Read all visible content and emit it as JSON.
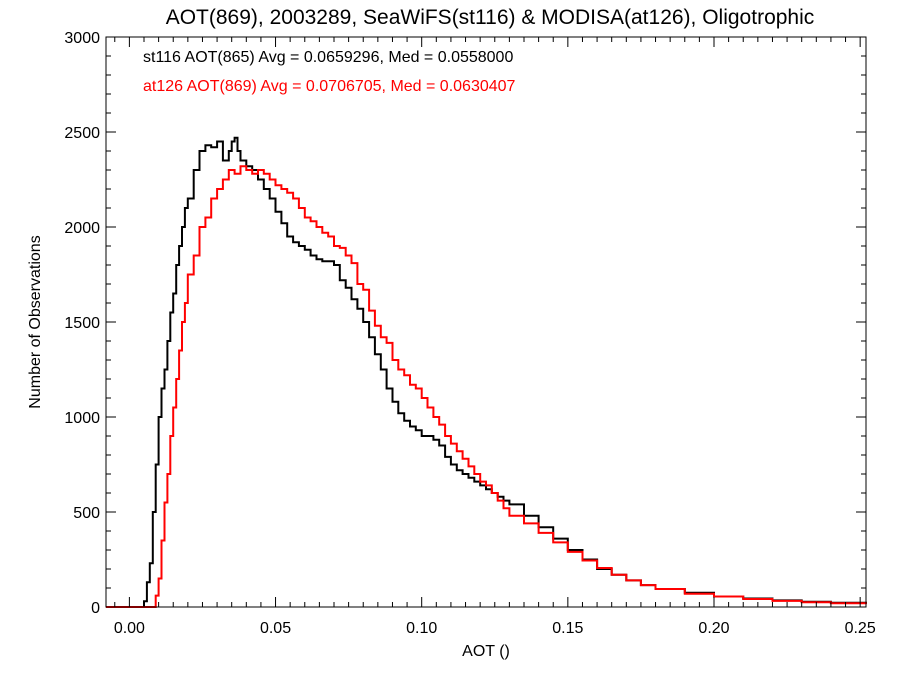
{
  "chart_data": {
    "type": "line",
    "title": "AOT(869), 2003289, SeaWiFS(st116) & MODISA(at126), Oligotrophic",
    "xlabel": "AOT ()",
    "ylabel": "Number of Observations",
    "xlim": [
      -0.008,
      0.252
    ],
    "ylim": [
      0,
      3000
    ],
    "xticks": [
      0.0,
      0.05,
      0.1,
      0.15,
      0.2,
      0.25
    ],
    "xtick_labels": [
      "0.00",
      "0.05",
      "0.10",
      "0.15",
      "0.20",
      "0.25"
    ],
    "yticks": [
      0,
      500,
      1000,
      1500,
      2000,
      2500,
      3000
    ],
    "ytick_labels": [
      "0",
      "500",
      "1000",
      "1500",
      "2000",
      "2500",
      "3000"
    ],
    "grid": false,
    "legend_placement": "top-left",
    "series": [
      {
        "name": "st116 AOT(865) Avg = 0.0659296, Med = 0.0558000",
        "color": "#000000",
        "style": "step",
        "x": [
          -0.008,
          0.002,
          0.004,
          0.005,
          0.006,
          0.007,
          0.008,
          0.009,
          0.01,
          0.011,
          0.012,
          0.013,
          0.014,
          0.015,
          0.016,
          0.017,
          0.018,
          0.019,
          0.02,
          0.022,
          0.024,
          0.026,
          0.028,
          0.03,
          0.032,
          0.034,
          0.035,
          0.036,
          0.037,
          0.038,
          0.04,
          0.042,
          0.044,
          0.046,
          0.048,
          0.05,
          0.052,
          0.054,
          0.056,
          0.058,
          0.06,
          0.062,
          0.064,
          0.066,
          0.068,
          0.07,
          0.072,
          0.074,
          0.076,
          0.078,
          0.08,
          0.082,
          0.084,
          0.086,
          0.088,
          0.09,
          0.092,
          0.094,
          0.096,
          0.098,
          0.1,
          0.102,
          0.104,
          0.106,
          0.108,
          0.11,
          0.112,
          0.114,
          0.116,
          0.118,
          0.12,
          0.122,
          0.124,
          0.126,
          0.128,
          0.13,
          0.135,
          0.14,
          0.145,
          0.15,
          0.155,
          0.16,
          0.165,
          0.17,
          0.175,
          0.18,
          0.19,
          0.2,
          0.21,
          0.22,
          0.23,
          0.24,
          0.252
        ],
        "y": [
          0,
          0,
          0,
          30,
          130,
          230,
          500,
          750,
          1000,
          1150,
          1250,
          1400,
          1550,
          1650,
          1800,
          1900,
          2000,
          2100,
          2150,
          2300,
          2400,
          2430,
          2420,
          2450,
          2350,
          2400,
          2450,
          2470,
          2400,
          2350,
          2320,
          2300,
          2250,
          2200,
          2150,
          2080,
          2020,
          1950,
          1920,
          1900,
          1880,
          1850,
          1830,
          1820,
          1820,
          1800,
          1720,
          1680,
          1620,
          1570,
          1500,
          1420,
          1330,
          1250,
          1150,
          1080,
          1020,
          980,
          950,
          930,
          900,
          900,
          880,
          850,
          790,
          750,
          720,
          700,
          680,
          660,
          640,
          620,
          600,
          580,
          560,
          540,
          480,
          420,
          360,
          300,
          250,
          200,
          170,
          140,
          115,
          95,
          75,
          55,
          45,
          35,
          28,
          22,
          18
        ]
      },
      {
        "name": "at126 AOT(869) Avg = 0.0706705, Med = 0.0630407",
        "color": "#ff0000",
        "style": "step",
        "x": [
          -0.008,
          0.008,
          0.009,
          0.01,
          0.011,
          0.012,
          0.013,
          0.014,
          0.015,
          0.016,
          0.017,
          0.018,
          0.019,
          0.02,
          0.022,
          0.024,
          0.026,
          0.028,
          0.03,
          0.032,
          0.034,
          0.036,
          0.038,
          0.04,
          0.042,
          0.044,
          0.046,
          0.048,
          0.05,
          0.052,
          0.054,
          0.056,
          0.058,
          0.06,
          0.062,
          0.064,
          0.066,
          0.068,
          0.07,
          0.072,
          0.074,
          0.076,
          0.078,
          0.08,
          0.082,
          0.084,
          0.086,
          0.088,
          0.09,
          0.092,
          0.094,
          0.096,
          0.098,
          0.1,
          0.102,
          0.104,
          0.106,
          0.108,
          0.11,
          0.112,
          0.114,
          0.116,
          0.118,
          0.12,
          0.122,
          0.124,
          0.126,
          0.128,
          0.13,
          0.135,
          0.14,
          0.145,
          0.15,
          0.155,
          0.16,
          0.165,
          0.17,
          0.175,
          0.18,
          0.19,
          0.2,
          0.21,
          0.22,
          0.23,
          0.24,
          0.252
        ],
        "y": [
          0,
          0,
          60,
          150,
          350,
          550,
          700,
          900,
          1050,
          1200,
          1350,
          1500,
          1600,
          1750,
          1850,
          2000,
          2050,
          2150,
          2200,
          2250,
          2300,
          2280,
          2320,
          2300,
          2280,
          2300,
          2280,
          2250,
          2220,
          2200,
          2180,
          2150,
          2100,
          2050,
          2030,
          2000,
          1970,
          1950,
          1900,
          1890,
          1850,
          1810,
          1700,
          1670,
          1560,
          1480,
          1420,
          1390,
          1300,
          1250,
          1220,
          1170,
          1150,
          1100,
          1050,
          1000,
          960,
          900,
          860,
          820,
          780,
          740,
          700,
          660,
          640,
          600,
          560,
          520,
          480,
          440,
          390,
          340,
          290,
          245,
          205,
          170,
          140,
          115,
          95,
          70,
          55,
          42,
          32,
          25,
          20,
          15
        ]
      }
    ]
  }
}
